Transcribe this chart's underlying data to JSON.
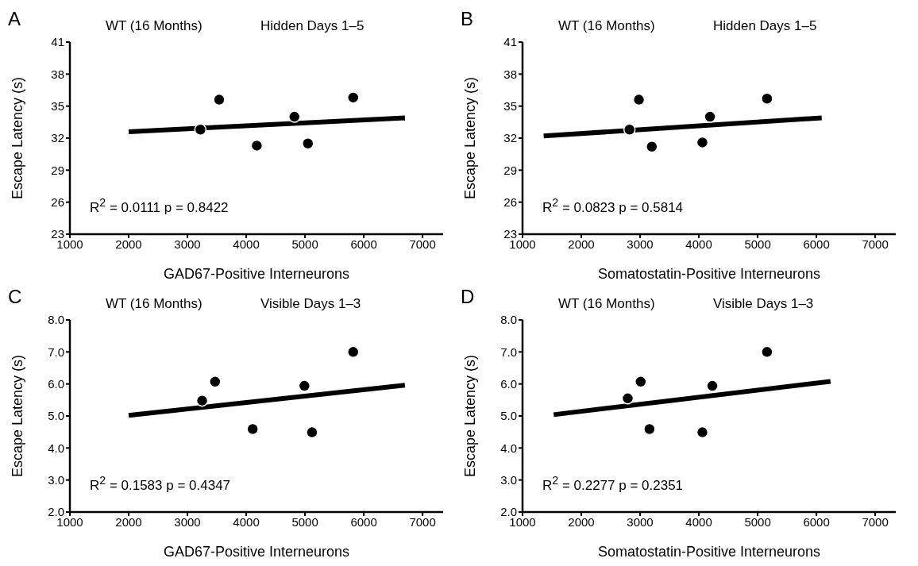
{
  "chart_data": [
    {
      "type": "scatter",
      "title": "A",
      "xlabel": "GAD67-Positive Interneurons",
      "ylabel": "Escape Latency (s)",
      "annotations": [
        "WT (16 Months)",
        "Hidden Days 1–5",
        "R$^{2}$ = 0.0111   p = 0.8422"
      ],
      "x": [
        3220,
        3540,
        4180,
        4820,
        5050,
        5820
      ],
      "series": [
        {
          "color": "#000000",
          "marker": "circle",
          "values": [
            32.8,
            35.6,
            31.3,
            34.0,
            31.5,
            35.8
          ]
        },
        {
          "type": "line",
          "color": "#000000",
          "marker": "none",
          "x": [
            2000,
            6700
          ],
          "values": [
            32.6,
            33.9
          ]
        }
      ],
      "xlim": [
        1000,
        7350
      ],
      "xticks": [
        1000,
        2000,
        3000,
        4000,
        5000,
        6000,
        7000
      ],
      "ylim": [
        23,
        41
      ],
      "yticks": [
        23,
        26,
        29,
        32,
        35,
        38,
        41
      ]
    },
    {
      "type": "scatter",
      "title": "B",
      "xlabel": "Somatostatin-Positive Interneurons",
      "ylabel": "Escape Latency (s)",
      "annotations": [
        "WT (16 Months)",
        "Hidden Days 1–5",
        "R$^{2}$ = 0.0823   p = 0.5814"
      ],
      "x": [
        2820,
        2980,
        3200,
        4060,
        4190,
        5160
      ],
      "series": [
        {
          "color": "#000000",
          "marker": "circle",
          "values": [
            32.8,
            35.6,
            31.2,
            31.6,
            34.0,
            35.7
          ]
        },
        {
          "type": "line",
          "color": "#000000",
          "marker": "none",
          "x": [
            1360,
            6090
          ],
          "values": [
            32.2,
            33.9
          ]
        }
      ],
      "xlim": [
        1000,
        7350
      ],
      "xticks": [
        1000,
        2000,
        3000,
        4000,
        5000,
        6000,
        7000
      ],
      "ylim": [
        23,
        41
      ],
      "yticks": [
        23,
        26,
        29,
        32,
        35,
        38,
        41
      ]
    },
    {
      "type": "scatter",
      "title": "C",
      "xlabel": "GAD67-Positive Interneurons",
      "ylabel": "Escape Latency (s)",
      "annotations": [
        "WT (16 Months)",
        "Visible Days 1–3",
        "R$^{2}$ = 0.1583   p = 0.4347"
      ],
      "x": [
        3250,
        3470,
        4110,
        4990,
        5120,
        5820
      ],
      "series": [
        {
          "color": "#000000",
          "marker": "circle",
          "values": [
            5.48,
            6.07,
            4.59,
            5.94,
            4.49,
            7.0
          ]
        },
        {
          "type": "line",
          "color": "#000000",
          "marker": "none",
          "x": [
            2000,
            6700
          ],
          "values": [
            5.02,
            5.96
          ]
        }
      ],
      "xlim": [
        1000,
        7350
      ],
      "xticks": [
        1000,
        2000,
        3000,
        4000,
        5000,
        6000,
        7000
      ],
      "ylim": [
        2,
        8
      ],
      "yticks": [
        {
          "value": 2,
          "label": "2.0"
        },
        {
          "value": 3,
          "label": "3.0"
        },
        {
          "value": 4,
          "label": "4.0"
        },
        {
          "value": 5,
          "label": "5.0"
        },
        {
          "value": 6,
          "label": "6.0"
        },
        {
          "value": 7,
          "label": "7.0"
        },
        {
          "value": 8,
          "label": "8.0"
        }
      ]
    },
    {
      "type": "scatter",
      "title": "D",
      "xlabel": "Somatostatin-Positive Interneurons",
      "ylabel": "Escape Latency (s)",
      "annotations": [
        "WT (16 Months)",
        "Visible Days 1–3",
        "R$^{2}$ = 0.2277   p = 0.2351"
      ],
      "x": [
        2790,
        3010,
        3160,
        4060,
        4230,
        5160
      ],
      "series": [
        {
          "color": "#000000",
          "marker": "circle",
          "values": [
            5.55,
            6.07,
            4.59,
            4.49,
            5.94,
            7.0
          ]
        },
        {
          "type": "line",
          "color": "#000000",
          "marker": "none",
          "x": [
            1530,
            6240
          ],
          "values": [
            5.04,
            6.08
          ]
        }
      ],
      "xlim": [
        1000,
        7350
      ],
      "xticks": [
        1000,
        2000,
        3000,
        4000,
        5000,
        6000,
        7000
      ],
      "ylim": [
        2,
        8
      ],
      "yticks": [
        {
          "value": 2,
          "label": "2.0"
        },
        {
          "value": 3,
          "label": "3.0"
        },
        {
          "value": 4,
          "label": "4.0"
        },
        {
          "value": 5,
          "label": "5.0"
        },
        {
          "value": 6,
          "label": "6.0"
        },
        {
          "value": 7,
          "label": "7.0"
        },
        {
          "value": 8,
          "label": "8.0"
        }
      ]
    }
  ]
}
